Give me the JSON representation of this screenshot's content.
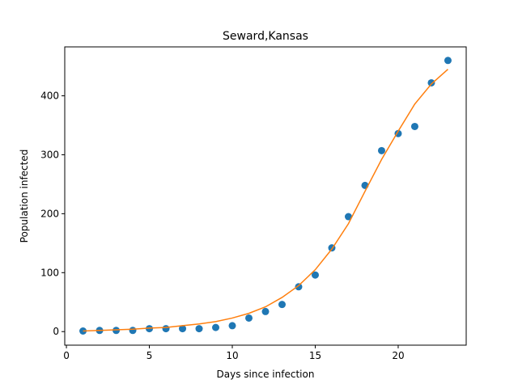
{
  "chart_data": {
    "type": "scatter",
    "title": "Seward,Kansas",
    "xlabel": "Days since infection",
    "ylabel": "Population infected",
    "xlim": [
      -0.1,
      24.1
    ],
    "ylim": [
      -23,
      483
    ],
    "xticks": [
      0,
      5,
      10,
      15,
      20
    ],
    "yticks": [
      0,
      100,
      200,
      300,
      400
    ],
    "grid": false,
    "colors": {
      "points": "#1f77b4",
      "fit": "#ff7f0e"
    },
    "series": [
      {
        "kind": "scatter",
        "x": [
          1,
          2,
          3,
          4,
          5,
          6,
          7,
          8,
          9,
          10,
          11,
          12,
          13,
          14,
          15,
          16,
          17,
          18,
          19,
          20,
          21,
          22,
          23
        ],
        "y": [
          1,
          2,
          2,
          2,
          5,
          5,
          5,
          5,
          7,
          10,
          23,
          34,
          46,
          76,
          96,
          142,
          195,
          248,
          307,
          336,
          348,
          422,
          460
        ]
      },
      {
        "kind": "line",
        "x": [
          1,
          2,
          3,
          4,
          5,
          6,
          7,
          8,
          9,
          10,
          11,
          12,
          13,
          14,
          15,
          16,
          17,
          18,
          19,
          20,
          21,
          22,
          23
        ],
        "y": [
          1,
          2,
          3,
          4,
          6,
          7,
          10,
          13,
          17,
          23,
          31,
          42,
          58,
          78,
          105,
          140,
          183,
          238,
          292,
          340,
          386,
          420,
          445
        ]
      }
    ]
  }
}
